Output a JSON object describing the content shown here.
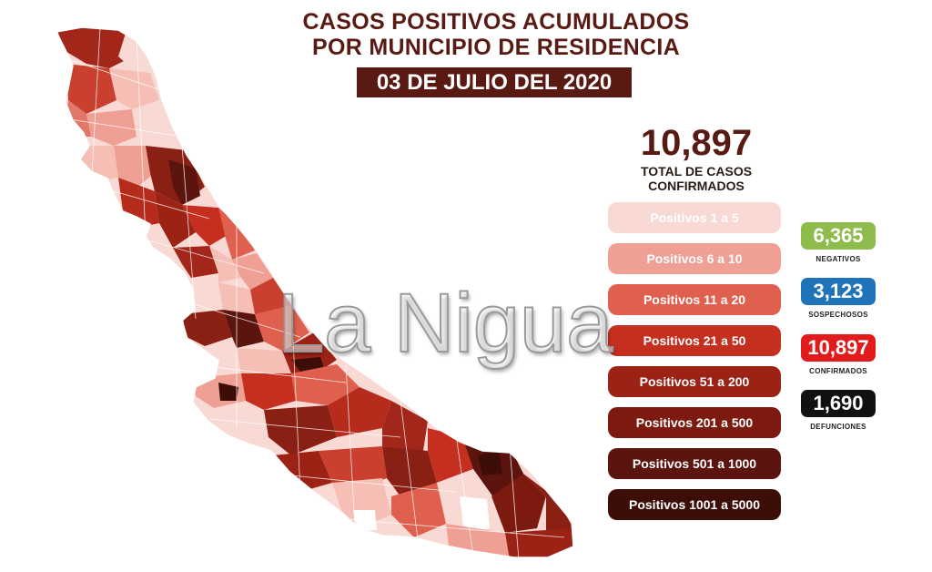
{
  "title": {
    "line1": "CASOS POSITIVOS ACUMULADOS",
    "line2": "POR MUNICIPIO DE RESIDENCIA"
  },
  "date": "03 DE JULIO DEL 2020",
  "total": {
    "value": "10,897",
    "label_line1": "TOTAL DE CASOS",
    "label_line2": "CONFIRMADOS"
  },
  "legend": [
    {
      "label": "Positivos 1 a 5",
      "color": "#f9d9d4",
      "text_color": "#ffffff"
    },
    {
      "label": "Positivos 6 a 10",
      "color": "#ef9f93",
      "text_color": "#ffffff"
    },
    {
      "label": "Positivos 11 a 20",
      "color": "#e0604f",
      "text_color": "#ffffff"
    },
    {
      "label": "Positivos 21 a 50",
      "color": "#c42f1f",
      "text_color": "#ffffff"
    },
    {
      "label": "Positivos 51 a 200",
      "color": "#9c2216",
      "text_color": "#ffffff"
    },
    {
      "label": "Positivos 201 a 500",
      "color": "#7d1a10",
      "text_color": "#ffffff"
    },
    {
      "label": "Positivos 501 a 1000",
      "color": "#5c150e",
      "text_color": "#ffffff"
    },
    {
      "label": "Positivos 1001 a 5000",
      "color": "#3d0d08",
      "text_color": "#ffffff"
    }
  ],
  "stats": [
    {
      "value": "6,365",
      "label": "NEGATIVOS",
      "color": "#8dbb4c"
    },
    {
      "value": "3,123",
      "label": "SOSPECHOSOS",
      "color": "#1f73b8"
    },
    {
      "value": "10,897",
      "label": "CONFIRMADOS",
      "color": "#e11b1b"
    },
    {
      "value": "1,690",
      "label": "DEFUNCIONES",
      "color": "#111111"
    }
  ],
  "watermark": "La Nigua",
  "map": {
    "region": "Veracruz",
    "outline_color": "#ffffff",
    "background_color": "#f9d9d4"
  }
}
